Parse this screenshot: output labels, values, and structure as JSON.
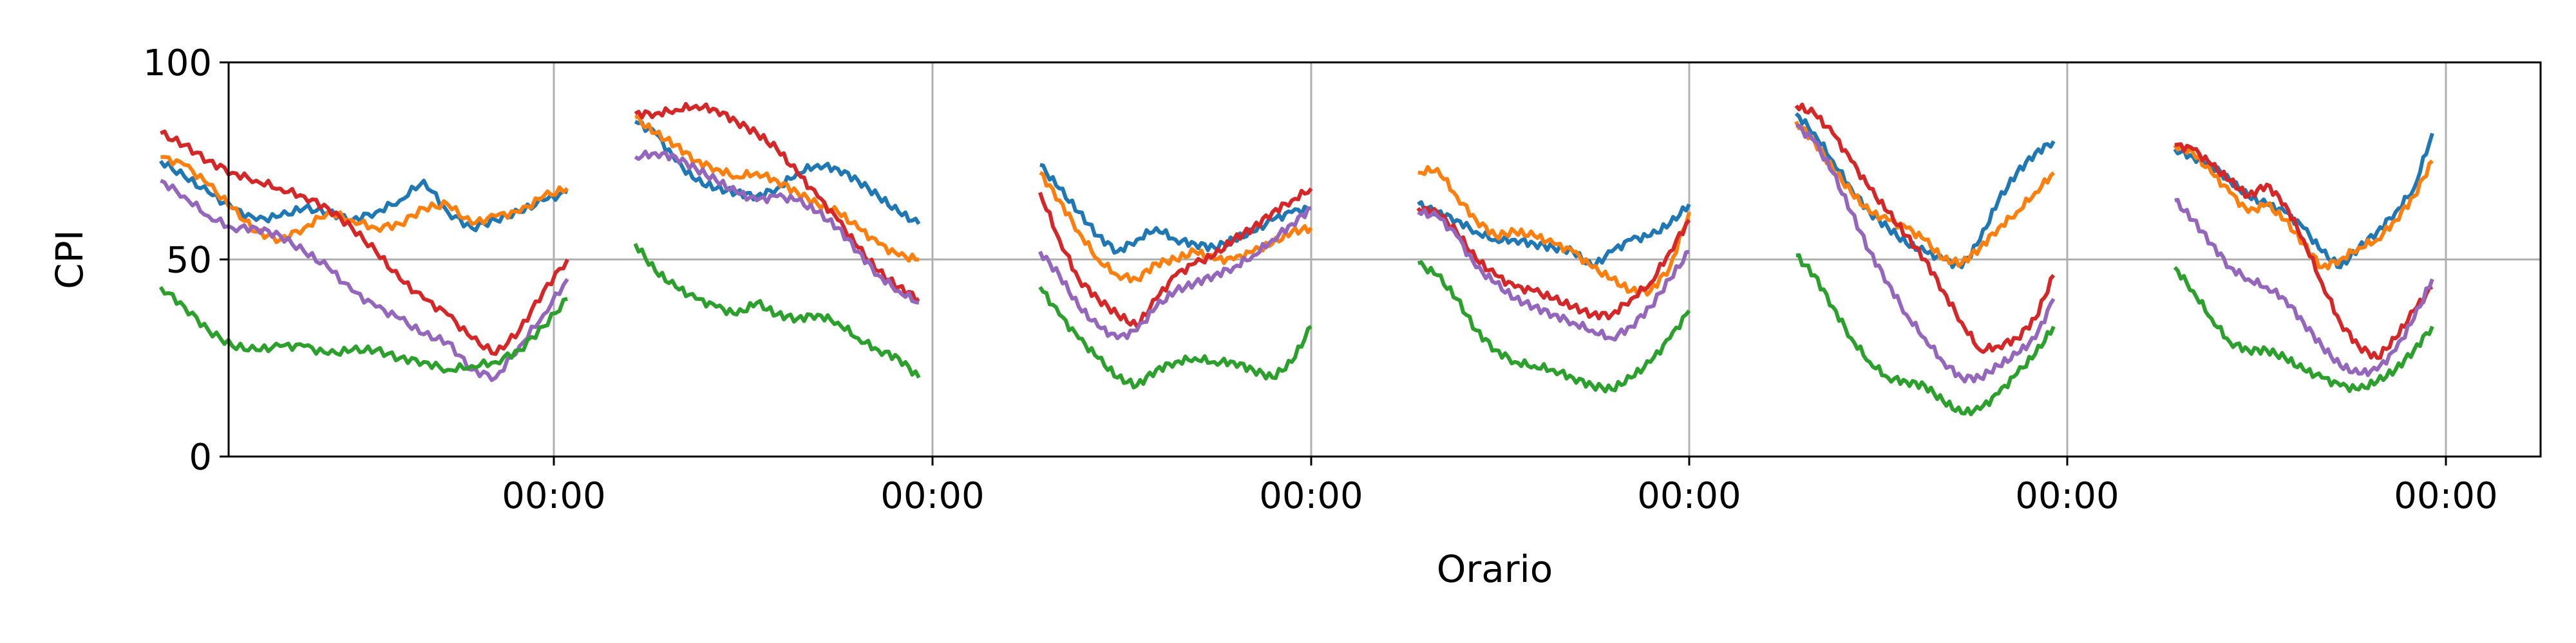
{
  "chart_data": {
    "type": "line",
    "title": "",
    "xlabel": "Orario",
    "ylabel": "CPI",
    "ylim": [
      0,
      100
    ],
    "yticks": [
      0,
      50,
      100
    ],
    "xticks": [
      "00:00",
      "00:00",
      "00:00",
      "00:00",
      "00:00",
      "00:00"
    ],
    "grid": true,
    "legend": "none",
    "colors": [
      "#1f77b4",
      "#ff7f0e",
      "#d62728",
      "#9467bd",
      "#2ca02c"
    ],
    "note_x_units": "hours relative to first midnight tick",
    "segments": [
      {
        "x_start": -5.8,
        "x_end": 0.2,
        "series": [
          {
            "color": "#1f77b4",
            "y": [
              75,
              71,
              67,
              63,
              60,
              61,
              63,
              62,
              60,
              62,
              65,
              70,
              62,
              58,
              60,
              62,
              65,
              67
            ]
          },
          {
            "color": "#ff7f0e",
            "y": [
              76,
              74,
              69,
              63,
              57,
              55,
              58,
              62,
              60,
              58,
              59,
              63,
              64,
              59,
              61,
              62,
              66,
              68
            ]
          },
          {
            "color": "#d62728",
            "y": [
              82,
              79,
              75,
              72,
              70,
              68,
              66,
              63,
              58,
              52,
              45,
              40,
              36,
              30,
              26,
              32,
              42,
              50
            ]
          },
          {
            "color": "#9467bd",
            "y": [
              70,
              66,
              61,
              58,
              58,
              56,
              52,
              48,
              42,
              38,
              35,
              31,
              29,
              22,
              20,
              28,
              36,
              45
            ]
          },
          {
            "color": "#2ca02c",
            "y": [
              43,
              38,
              32,
              28,
              27,
              28,
              28,
              26,
              27,
              27,
              25,
              24,
              22,
              23,
              24,
              27,
              33,
              40
            ]
          }
        ]
      },
      {
        "x_start": 1.2,
        "x_end": 6.8,
        "series": [
          {
            "color": "#1f77b4",
            "y": [
              85,
              82,
              75,
              70,
              68,
              67,
              66,
              68,
              72,
              74,
              73,
              70,
              66,
              62,
              59
            ]
          },
          {
            "color": "#ff7f0e",
            "y": [
              86,
              82,
              79,
              75,
              73,
              71,
              72,
              70,
              67,
              64,
              62,
              58,
              54,
              51,
              50
            ]
          },
          {
            "color": "#d62728",
            "y": [
              87,
              87,
              88,
              89,
              88,
              85,
              82,
              78,
              72,
              66,
              60,
              53,
              47,
              43,
              40
            ]
          },
          {
            "color": "#9467bd",
            "y": [
              76,
              77,
              76,
              73,
              70,
              67,
              65,
              66,
              65,
              62,
              58,
              52,
              46,
              42,
              39
            ]
          },
          {
            "color": "#2ca02c",
            "y": [
              54,
              47,
              43,
              40,
              38,
              36,
              39,
              36,
              35,
              36,
              34,
              30,
              27,
              25,
              20
            ]
          }
        ]
      },
      {
        "x_start": -4.0,
        "x_end": 0.0,
        "segment_tick_index": 2,
        "series": [
          {
            "color": "#1f77b4",
            "y": [
              74,
              68,
              62,
              56,
              52,
              55,
              58,
              55,
              54,
              53,
              55,
              57,
              60,
              62,
              63
            ]
          },
          {
            "color": "#ff7f0e",
            "y": [
              72,
              65,
              57,
              50,
              46,
              45,
              49,
              50,
              52,
              50,
              50,
              52,
              54,
              57,
              58
            ]
          },
          {
            "color": "#d62728",
            "y": [
              67,
              55,
              45,
              40,
              36,
              33,
              40,
              46,
              49,
              51,
              55,
              58,
              62,
              65,
              68
            ]
          },
          {
            "color": "#9467bd",
            "y": [
              52,
              46,
              38,
              33,
              30,
              32,
              38,
              42,
              44,
              46,
              48,
              51,
              55,
              59,
              63
            ]
          },
          {
            "color": "#2ca02c",
            "y": [
              43,
              36,
              30,
              25,
              20,
              18,
              22,
              24,
              25,
              24,
              24,
              22,
              20,
              24,
              33
            ]
          }
        ]
      },
      {
        "x_start": -4.0,
        "x_end": 0.0,
        "segment_tick_index": 3,
        "series": [
          {
            "color": "#1f77b4",
            "y": [
              64,
              62,
              60,
              57,
              55,
              55,
              54,
              53,
              52,
              48,
              52,
              55,
              56,
              59,
              64
            ]
          },
          {
            "color": "#ff7f0e",
            "y": [
              72,
              73,
              66,
              60,
              56,
              57,
              56,
              54,
              52,
              48,
              45,
              42,
              42,
              48,
              62
            ]
          },
          {
            "color": "#d62728",
            "y": [
              63,
              62,
              57,
              50,
              46,
              43,
              42,
              40,
              38,
              36,
              36,
              40,
              44,
              52,
              60
            ]
          },
          {
            "color": "#9467bd",
            "y": [
              62,
              61,
              56,
              48,
              44,
              40,
              38,
              36,
              34,
              32,
              30,
              33,
              38,
              45,
              52
            ]
          },
          {
            "color": "#2ca02c",
            "y": [
              49,
              46,
              40,
              32,
              27,
              24,
              23,
              22,
              20,
              18,
              17,
              20,
              24,
              30,
              37
            ]
          }
        ]
      },
      {
        "x_start": -4.0,
        "x_end": -0.2,
        "segment_tick_index": 4,
        "series": [
          {
            "color": "#1f77b4",
            "y": [
              87,
              82,
              75,
              68,
              62,
              58,
              54,
              52,
              50,
              48,
              55,
              65,
              72,
              77,
              80
            ]
          },
          {
            "color": "#ff7f0e",
            "y": [
              85,
              80,
              73,
              67,
              62,
              60,
              58,
              55,
              50,
              49,
              53,
              58,
              62,
              67,
              72
            ]
          },
          {
            "color": "#d62728",
            "y": [
              89,
              87,
              82,
              75,
              68,
              62,
              56,
              50,
              42,
              34,
              27,
              28,
              30,
              35,
              46
            ]
          },
          {
            "color": "#9467bd",
            "y": [
              84,
              80,
              72,
              62,
              52,
              44,
              36,
              30,
              24,
              20,
              20,
              23,
              26,
              30,
              40
            ]
          },
          {
            "color": "#2ca02c",
            "y": [
              51,
              46,
              38,
              30,
              24,
              20,
              19,
              18,
              14,
              11,
              12,
              16,
              21,
              26,
              33
            ]
          }
        ]
      },
      {
        "x_start": -4.0,
        "x_end": -0.2,
        "segment_tick_index": 5,
        "series": [
          {
            "color": "#1f77b4",
            "y": [
              78,
              76,
              74,
              70,
              66,
              64,
              62,
              58,
              52,
              48,
              53,
              57,
              62,
              68,
              82
            ]
          },
          {
            "color": "#ff7f0e",
            "y": [
              79,
              77,
              72,
              67,
              62,
              64,
              60,
              54,
              48,
              50,
              53,
              55,
              60,
              66,
              75
            ]
          },
          {
            "color": "#d62728",
            "y": [
              79,
              78,
              74,
              70,
              66,
              69,
              64,
              55,
              44,
              34,
              28,
              25,
              30,
              37,
              43
            ]
          },
          {
            "color": "#9467bd",
            "y": [
              65,
              60,
              54,
              48,
              45,
              43,
              40,
              34,
              28,
              23,
              21,
              22,
              27,
              35,
              45
            ]
          },
          {
            "color": "#2ca02c",
            "y": [
              48,
              42,
              35,
              29,
              27,
              27,
              25,
              22,
              20,
              18,
              17,
              19,
              22,
              27,
              33
            ]
          }
        ]
      }
    ]
  }
}
